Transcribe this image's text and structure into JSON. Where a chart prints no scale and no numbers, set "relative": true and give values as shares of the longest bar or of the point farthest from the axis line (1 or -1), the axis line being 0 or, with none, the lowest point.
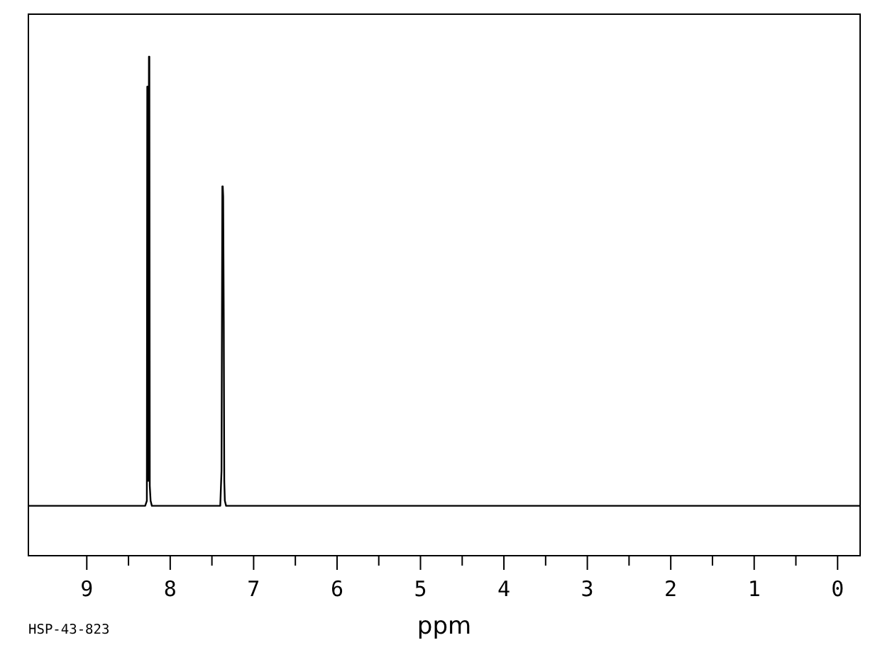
{
  "chart_data": {
    "type": "line",
    "relative": true,
    "xlabel": "ppm",
    "annotations": [
      "HSP-43-823"
    ],
    "xlim": [
      9.7,
      -0.27
    ],
    "xticks": [
      9,
      {
        "value": 8.5,
        "label": null
      },
      8,
      {
        "value": 7.5,
        "label": null
      },
      7,
      {
        "value": 6.5,
        "label": null
      },
      6,
      {
        "value": 5.5,
        "label": null
      },
      5,
      {
        "value": 4.5,
        "label": null
      },
      4,
      {
        "value": 3.5,
        "label": null
      },
      3,
      {
        "value": 2.5,
        "label": null
      },
      2,
      {
        "value": 1.5,
        "label": null
      },
      1,
      {
        "value": 0.5,
        "label": null
      },
      0
    ],
    "tick_labels": "x",
    "series": [
      {
        "color": "#000000",
        "x": [
          9.7,
          8.3,
          8.28,
          8.275,
          8.27,
          8.262,
          8.255,
          8.25,
          8.245,
          8.235,
          8.22,
          7.9,
          7.4,
          7.385,
          7.375,
          7.37,
          7.365,
          7.358,
          7.352,
          7.345,
          7.33,
          7.0,
          -0.27
        ],
        "values": [
          0.1,
          0.1,
          0.11,
          0.94,
          0.94,
          0.15,
          1,
          1,
          0.14,
          0.11,
          0.1,
          0.1,
          0.1,
          0.17,
          0.74,
          0.74,
          0.72,
          0.47,
          0.15,
          0.11,
          0.1,
          0.1,
          0.1
        ]
      }
    ]
  }
}
